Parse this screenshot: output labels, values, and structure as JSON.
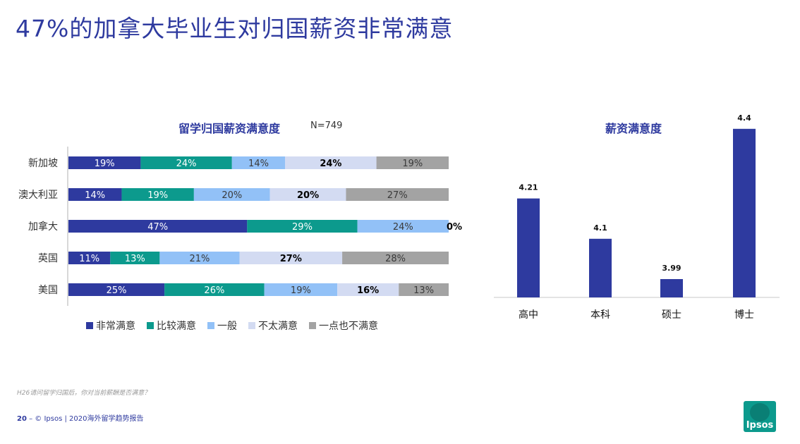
{
  "page": {
    "title": "47%的加拿大毕业生对归国薪资非常满意",
    "footnote": "H26请问留学归国后，你对当前薪酬是否满意？",
    "footer_page": "20",
    "footer_text": " – © Ipsos | 2020海外留学趋势报告",
    "logo_text": "Ipsos"
  },
  "colors": {
    "title": "#2e3a9f",
    "series": [
      "#2e3a9f",
      "#0c9a8d",
      "#92c1f7",
      "#d3dbf2",
      "#a3a3a3"
    ],
    "label_colors": [
      "#ffffff",
      "#ffffff",
      "#3a3a3a",
      "#000000",
      "#3a3a3a"
    ],
    "right_bar": "#2e3a9f"
  },
  "chart_data": [
    {
      "type": "bar",
      "orientation": "horizontal",
      "stacked": true,
      "title": "留学归国薪资满意度",
      "n_label": "N=749",
      "categories": [
        "新加坡",
        "澳大利亚",
        "加拿大",
        "英国",
        "美国"
      ],
      "series": [
        {
          "name": "非常满意",
          "values": [
            19,
            14,
            47,
            11,
            25
          ]
        },
        {
          "name": "比较满意",
          "values": [
            24,
            19,
            29,
            13,
            26
          ]
        },
        {
          "name": "一般",
          "values": [
            14,
            20,
            24,
            21,
            19
          ]
        },
        {
          "name": "不太满意",
          "values": [
            24,
            20,
            0,
            27,
            16
          ]
        },
        {
          "name": "一点也不满意",
          "values": [
            19,
            27,
            0,
            28,
            13
          ]
        }
      ],
      "unit": "%",
      "legend": "bottom"
    },
    {
      "type": "bar",
      "orientation": "vertical",
      "title": "薪资满意度",
      "categories": [
        "高中",
        "本科",
        "硕士",
        "博士"
      ],
      "values": [
        4.21,
        4.1,
        3.99,
        4.4
      ],
      "data_labels": [
        "4.21",
        "4.1",
        "3.99",
        "4.4"
      ]
    }
  ]
}
